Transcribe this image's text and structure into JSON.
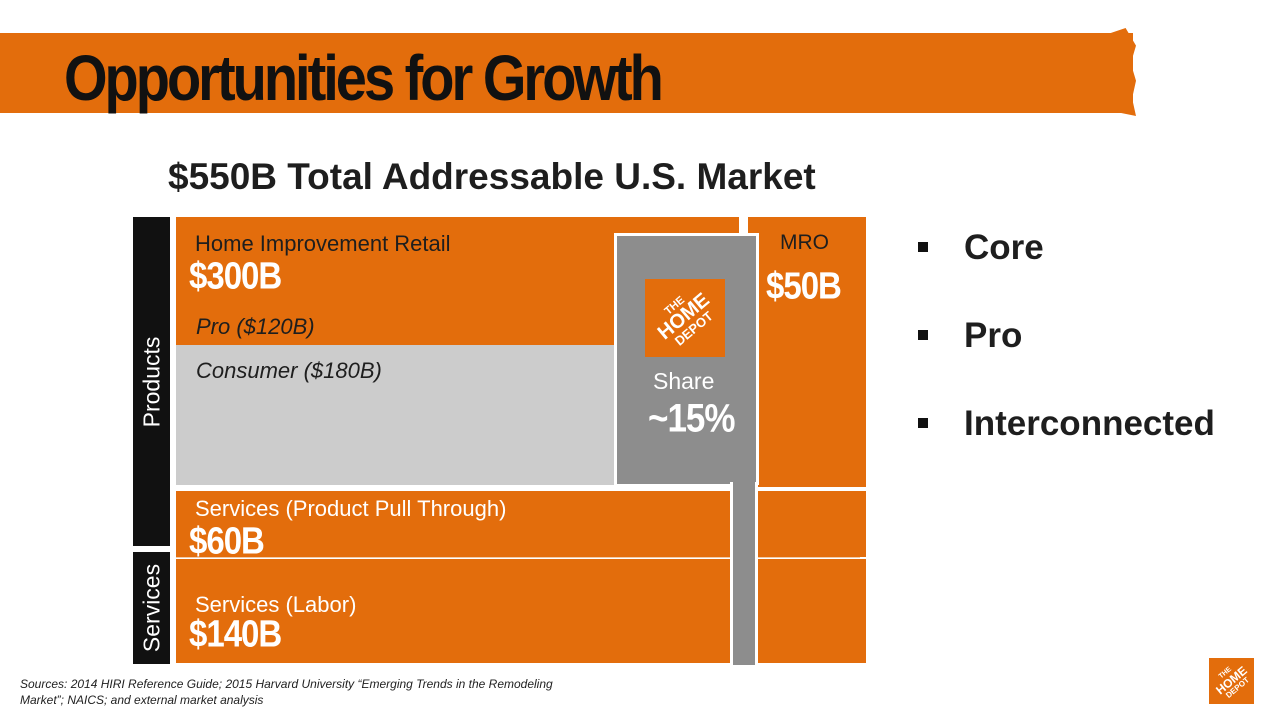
{
  "header": {
    "title": "Opportunities for Growth"
  },
  "market": {
    "title": "$550B Total Addressable U.S. Market",
    "products_label": "Products",
    "services_label": "Services",
    "home_improvement": {
      "label": "Home Improvement Retail",
      "value": "$300B"
    },
    "pro": {
      "label": "Pro ($120B)"
    },
    "consumer": {
      "label": "Consumer ($180B)"
    },
    "mro": {
      "label": "MRO",
      "value": "$50B"
    },
    "share": {
      "label": "Share",
      "value": "~15%"
    },
    "services_pull": {
      "label": "Services (Product Pull Through)",
      "value": "$60B"
    },
    "services_labor": {
      "label": "Services (Labor)",
      "value": "$140B"
    }
  },
  "logo": {
    "line1": "THE",
    "line2": "HOME",
    "line3": "DEPOT"
  },
  "bullets": [
    "Core",
    "Pro",
    "Interconnected"
  ],
  "footer": {
    "sources": "Sources: 2014 HIRI Reference Guide; 2015 Harvard University “Emerging Trends in the Remodeling Market”; NAICS; and external market analysis"
  },
  "colors": {
    "brand_orange": "#e36d0c",
    "consumer_gray": "#cccccc",
    "share_gray": "#8d8d8d",
    "dark": "#111111"
  }
}
